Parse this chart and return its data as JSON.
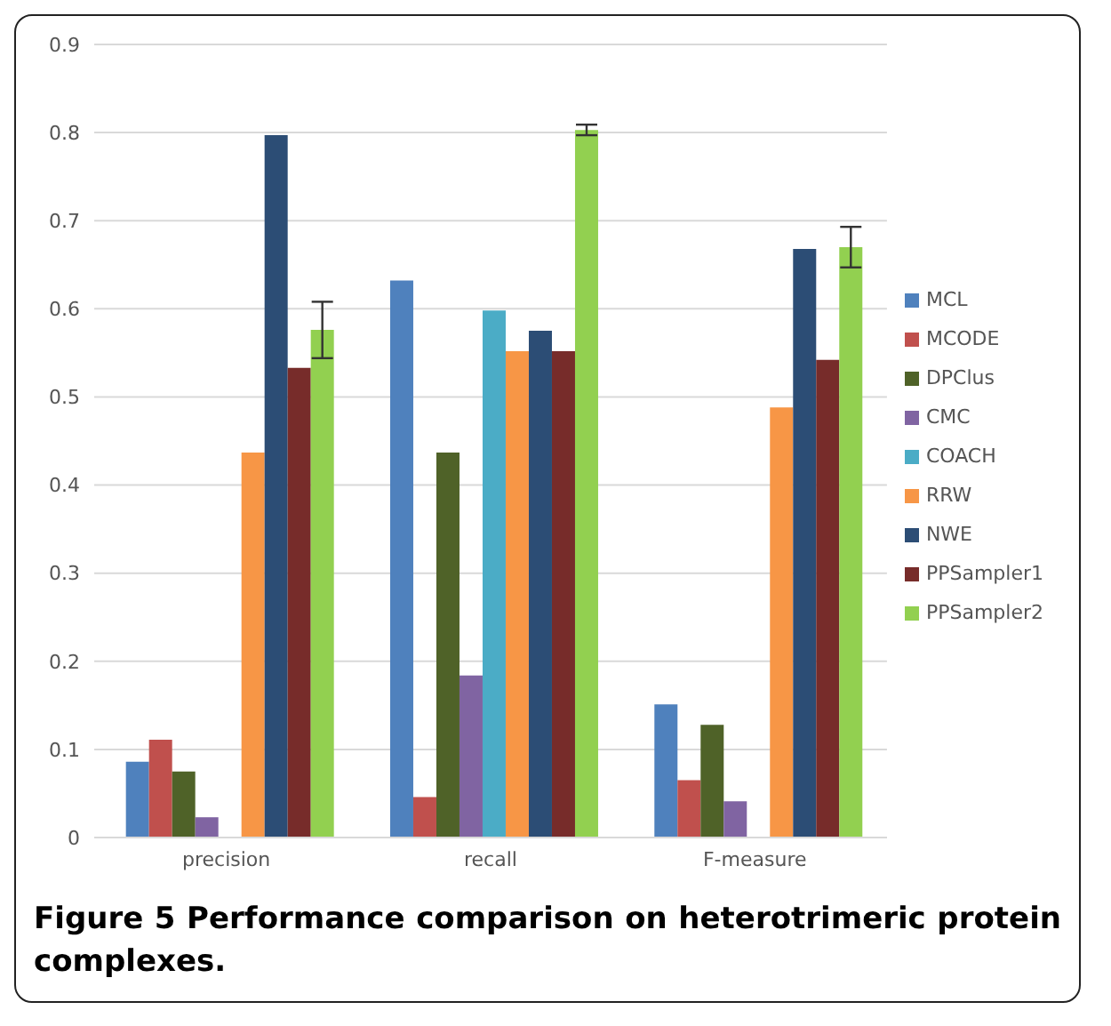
{
  "chart_data": {
    "type": "bar",
    "title": "Figure 5 Performance comparison on heterotrimeric protein complexes.",
    "categories": [
      "precision",
      "recall",
      "F-measure"
    ],
    "series": [
      {
        "name": "MCL",
        "color": "#4f81bd",
        "values": [
          0.086,
          0.632,
          0.151
        ]
      },
      {
        "name": "MCODE",
        "color": "#c0504d",
        "values": [
          0.111,
          0.046,
          0.065
        ]
      },
      {
        "name": "DPClus",
        "color": "#4f6228",
        "values": [
          0.075,
          0.437,
          0.128
        ]
      },
      {
        "name": "CMC",
        "color": "#8064a2",
        "values": [
          0.023,
          0.184,
          0.041
        ]
      },
      {
        "name": "COACH",
        "color": "#4bacc6",
        "values": [
          0,
          0.598,
          0
        ]
      },
      {
        "name": "RRW",
        "color": "#f79646",
        "values": [
          0.437,
          0.552,
          0.488
        ]
      },
      {
        "name": "NWE",
        "color": "#2c4d75",
        "values": [
          0.797,
          0.575,
          0.668
        ]
      },
      {
        "name": "PPSampler1",
        "color": "#772c2a",
        "values": [
          0.533,
          0.552,
          0.542
        ]
      },
      {
        "name": "PPSampler2",
        "color": "#92d050",
        "values": [
          0.576,
          0.803,
          0.67
        ],
        "errors": [
          0.032,
          0.006,
          0.023
        ]
      }
    ],
    "ylim": [
      0,
      0.9
    ],
    "yticks": [
      0,
      0.1,
      0.2,
      0.3,
      0.4,
      0.5,
      0.6,
      0.7,
      0.8,
      0.9
    ],
    "grid": "y",
    "legend": "right"
  }
}
